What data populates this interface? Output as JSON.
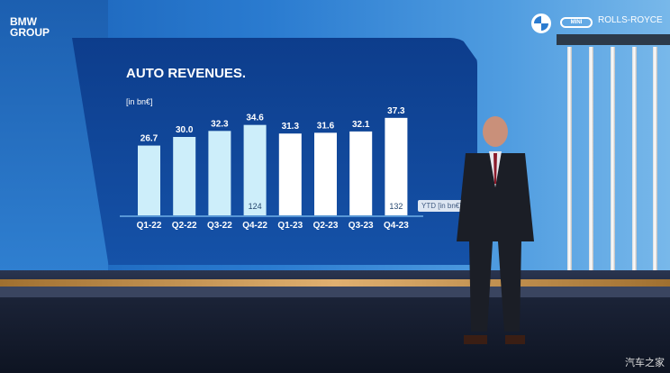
{
  "branding": {
    "group_logo": "BMW GROUP",
    "brand_logos": [
      "BMW",
      "MINI",
      "ROLLS-ROYCE"
    ],
    "watermark": "汽车之家"
  },
  "chart_data": {
    "type": "bar",
    "title": "AUTO REVENUES.",
    "unit_label": "[in bn€]",
    "categories": [
      "Q1-22",
      "Q2-22",
      "Q3-22",
      "Q4-22",
      "Q1-23",
      "Q2-23",
      "Q3-23",
      "Q4-23"
    ],
    "values": [
      26.7,
      30.0,
      32.3,
      34.6,
      31.3,
      31.6,
      32.1,
      37.3
    ],
    "value_labels": [
      "26.7",
      "30.0",
      "32.3",
      "34.6",
      "31.3",
      "31.6",
      "32.1",
      "37.3"
    ],
    "bar_colors": [
      "#cdeefa",
      "#cdeefa",
      "#cdeefa",
      "#cdeefa",
      "#ffffff",
      "#ffffff",
      "#ffffff",
      "#ffffff"
    ],
    "ytd": {
      "label": "YTD [in bn€]",
      "values": [
        {
          "category": "Q4-22",
          "value": "124"
        },
        {
          "category": "Q4-23",
          "value": "132"
        }
      ]
    },
    "ylim": [
      0,
      40
    ],
    "grid": false
  }
}
